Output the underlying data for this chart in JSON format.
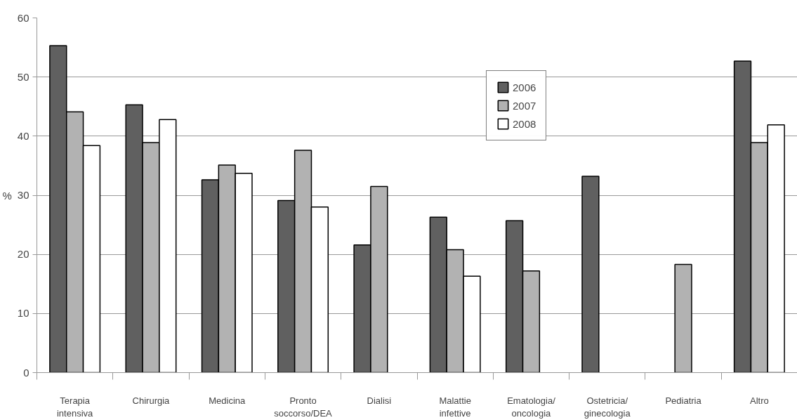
{
  "chart_data": {
    "type": "bar",
    "ylabel": "%",
    "categories": [
      "Terapia\nintensiva",
      "Chirurgia",
      "Medicina",
      "Pronto\nsoccorso/DEA",
      "Dialisi",
      "Malattie\ninfettive",
      "Ematologia/\noncologia",
      "Ostetricia/\nginecologia",
      "Pediatria",
      "Altro"
    ],
    "series": [
      {
        "name": "2006",
        "color": "#606060",
        "values": [
          55.3,
          45.3,
          32.6,
          29.1,
          21.6,
          26.3,
          25.7,
          33.2,
          null,
          52.7
        ]
      },
      {
        "name": "2007",
        "color": "#b2b2b2",
        "values": [
          44.1,
          38.9,
          35.1,
          37.6,
          31.5,
          20.8,
          17.2,
          null,
          18.3,
          38.9
        ]
      },
      {
        "name": "2008",
        "color": "#ffffff",
        "values": [
          38.4,
          42.8,
          33.7,
          28.0,
          null,
          16.3,
          null,
          null,
          null,
          41.9
        ]
      }
    ],
    "ylim": [
      0,
      60
    ],
    "yticks": [
      0,
      10,
      20,
      30,
      40,
      50,
      60
    ],
    "grid": "y",
    "legend": "top right"
  }
}
